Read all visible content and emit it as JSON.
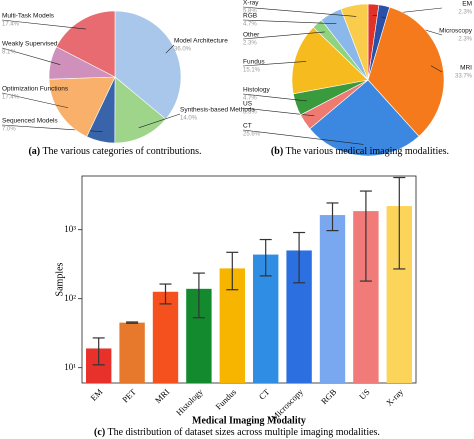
{
  "chart_data": [
    {
      "type": "pie",
      "label": "(a)",
      "caption": "The various categories of contributions.",
      "categories": [
        "Model Architecture",
        "Synthesis-based Methods",
        "Sequenced Models",
        "Optimization Functions",
        "Weakly Supervised Methods",
        "Multi-Task Models"
      ],
      "values": [
        36,
        14,
        7,
        17.4,
        8.1,
        17.4
      ],
      "value_labels": [
        "36.0%",
        "14.0%",
        "7.0%",
        "17.4%",
        "8.1%",
        "17.4%"
      ],
      "colors": [
        "#a9c7ea",
        "#9fd48b",
        "#3a64a9",
        "#f8b06b",
        "#cf90bb",
        "#e76b70"
      ]
    },
    {
      "type": "pie",
      "label": "(b)",
      "caption": "The various medical imaging modalities.",
      "categories": [
        "EM",
        "Microscopy",
        "MRI",
        "CT",
        "US",
        "Histology",
        "Fundus",
        "Other",
        "RGB",
        "X-ray"
      ],
      "values": [
        2.3,
        2.3,
        33.7,
        25.6,
        3.5,
        4.7,
        15.1,
        2.3,
        4.7,
        5.8
      ],
      "value_labels": [
        "2.3%",
        "2.3%",
        "33.7%",
        "25.6%",
        "3.5%",
        "4.7%",
        "15.1%",
        "2.3%",
        "4.7%",
        "5.8%"
      ],
      "colors": [
        "#e23228",
        "#2b50a8",
        "#f47a1b",
        "#3c88e0",
        "#ee7a72",
        "#3a9a3e",
        "#f5bb1f",
        "#8fd27f",
        "#8ab8ea",
        "#f9cc4c"
      ]
    },
    {
      "type": "bar",
      "label": "(c)",
      "caption": "The distribution of dataset sizes across multiple imaging modalities.",
      "xlabel": "Medical Imaging Modality",
      "ylabel": "Samples",
      "log_y": true,
      "categories": [
        "EM",
        "PET",
        "MRI",
        "Histology",
        "Fundus",
        "CT",
        "Microscopy",
        "RGB",
        "US",
        "X-ray"
      ],
      "values": [
        19,
        45,
        126,
        139,
        275,
        436,
        500,
        1630,
        1860,
        2200
      ],
      "error_low": [
        11,
        44,
        84,
        53,
        135,
        214,
        170,
        970,
        180,
        270
      ],
      "error_high": [
        27,
        46,
        163,
        235,
        470,
        720,
        910,
        2440,
        3630,
        5700
      ],
      "colors": [
        "#e8312a",
        "#e6792b",
        "#f4511e",
        "#138a2e",
        "#f7b500",
        "#2f8de4",
        "#2b6fe0",
        "#7aa8f0",
        "#f07b78",
        "#fdd45a"
      ],
      "ylim": [
        6,
        6000
      ],
      "yticks": [
        {
          "value": 10,
          "label": "10¹"
        },
        {
          "value": 100,
          "label": "10²"
        },
        {
          "value": 1000,
          "label": "10³"
        }
      ]
    }
  ]
}
